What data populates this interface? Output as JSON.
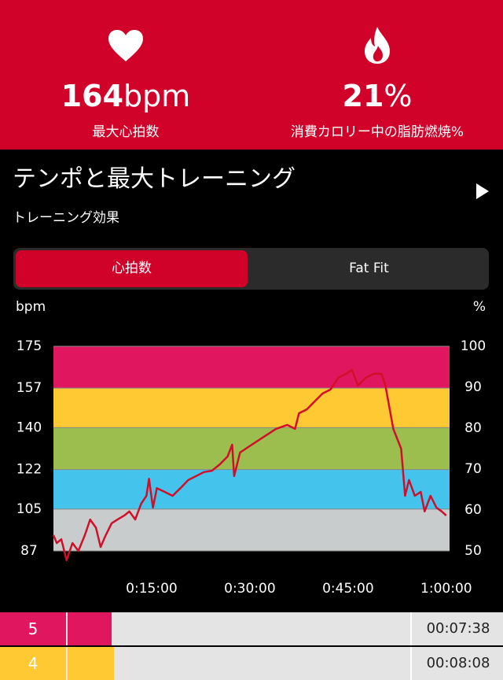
{
  "header": {
    "stats": [
      {
        "value": "164",
        "unit": "bpm",
        "label": "最大心拍数"
      },
      {
        "value": "21",
        "unit": "%",
        "label": "消費カロリー中の脂肪燃焼%"
      }
    ]
  },
  "section": {
    "title": "テンポと最大トレーニング",
    "subtitle": "トレーニング効果"
  },
  "tabs": [
    "心拍数",
    "Fat Fit"
  ],
  "chart_data": {
    "type": "line",
    "y_label": "bpm",
    "y2_label": "%",
    "color": "#d0102a",
    "x": [
      0,
      0.5,
      1.2,
      2.0,
      2.9,
      3.8,
      4.8,
      5.6,
      6.5,
      7.2,
      8.0,
      8.9,
      9.8,
      10.8,
      11.6,
      12.5,
      13.4,
      14.2,
      14.6,
      15.2,
      15.8,
      17.0,
      18.2,
      19.4,
      20.6,
      21.8,
      23.0,
      24.2,
      25.4,
      26.6,
      27.3,
      27.6,
      28.5,
      30.3,
      32.1,
      34.0,
      35.7,
      36.9,
      37.5,
      38.7,
      39.9,
      41.1,
      42.3,
      43.5,
      44.7,
      45.6,
      46.5,
      47.7,
      48.9,
      50.1,
      50.7,
      51.9,
      53.1,
      53.7,
      54.3,
      55.2,
      56.1,
      56.7,
      57.6,
      58.5,
      59.3,
      60.0
    ],
    "values": [
      93.8,
      90.4,
      92,
      83,
      90.4,
      87,
      93.8,
      100.5,
      97,
      88.7,
      93.8,
      98.9,
      100.5,
      102.2,
      104,
      100.5,
      107.3,
      110.7,
      118,
      105.6,
      114,
      112.4,
      110.7,
      114,
      117.5,
      119.2,
      120.9,
      121.5,
      124.2,
      127.6,
      132.7,
      119.2,
      129.3,
      132.7,
      136,
      139.5,
      141.2,
      139.5,
      146.2,
      147.9,
      151.3,
      154.7,
      156.4,
      161.5,
      163.2,
      164.8,
      158.1,
      161.5,
      163.2,
      163.2,
      158.1,
      139.5,
      131,
      110.7,
      117.5,
      110.7,
      112.4,
      104,
      110.7,
      105.6,
      104,
      102.2
    ],
    "xlim": [
      0,
      60.5
    ],
    "xticks": [
      {
        "value": 15,
        "label": "0:15:00"
      },
      {
        "value": 30,
        "label": "0:30:00"
      },
      {
        "value": 45,
        "label": "0:45:00"
      },
      {
        "value": 60,
        "label": "1:00:00"
      }
    ],
    "ylim": [
      87,
      175
    ],
    "yticks": [
      87,
      105,
      122,
      140,
      157,
      175
    ],
    "y2lim": [
      50,
      100
    ],
    "y2ticks": [
      50,
      60,
      70,
      80,
      90,
      100
    ],
    "zones": [
      {
        "from": 157,
        "to": 175,
        "color": "#e0175f"
      },
      {
        "from": 140,
        "to": 157,
        "color": "#fec933"
      },
      {
        "from": 122,
        "to": 140,
        "color": "#9bbe4f"
      },
      {
        "from": 105,
        "to": 122,
        "color": "#44c4ec"
      },
      {
        "from": 87,
        "to": 105,
        "color": "#c9cccd"
      }
    ]
  },
  "zone_table": {
    "rows": [
      {
        "zone": "5",
        "time": "00:07:38",
        "color": "#e0175f"
      },
      {
        "zone": "4",
        "time": "00:08:08",
        "color": "#fec933"
      }
    ]
  }
}
